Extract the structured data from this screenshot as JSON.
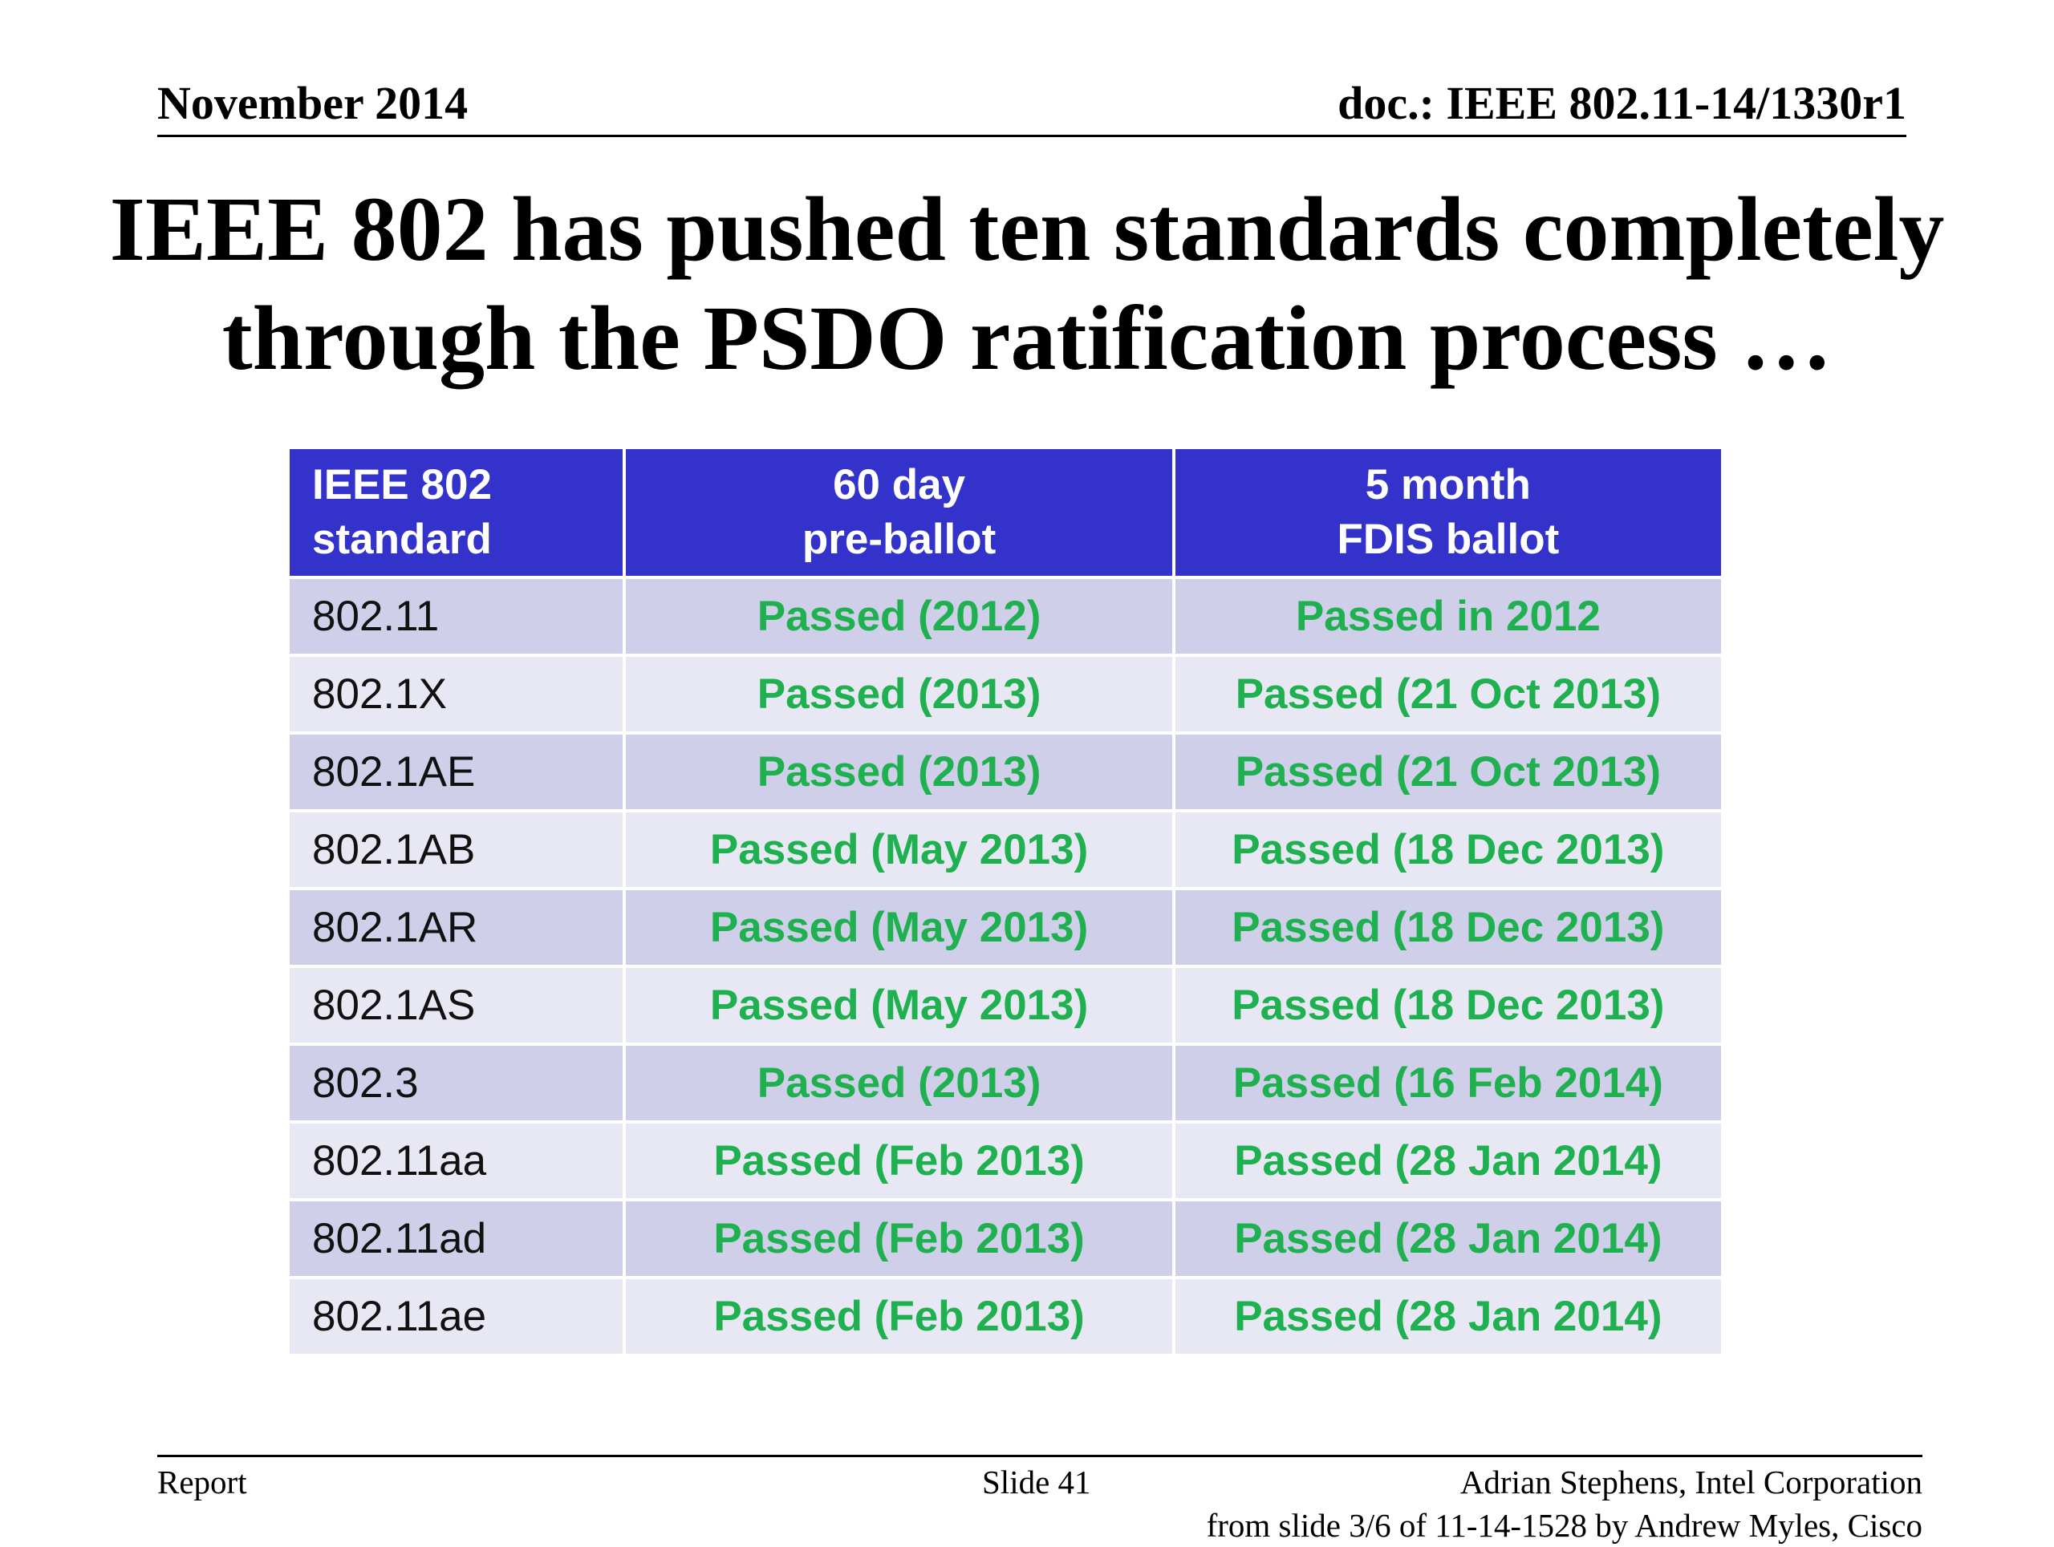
{
  "header": {
    "date": "November 2014",
    "doc_id": "doc.: IEEE 802.11-14/1330r1"
  },
  "title": {
    "line1": "IEEE 802 has pushed ten standards completely",
    "line2": "through the PSDO ratification process …"
  },
  "table": {
    "columns": [
      "IEEE 802 standard",
      "60 day pre-ballot",
      "5 month FDIS ballot"
    ],
    "header_lines": [
      [
        "IEEE 802",
        "standard"
      ],
      [
        "60 day",
        "pre-ballot"
      ],
      [
        "5 month",
        "FDIS ballot"
      ]
    ],
    "rows": [
      [
        "802.11",
        "Passed (2012)",
        "Passed in 2012"
      ],
      [
        "802.1X",
        "Passed (2013)",
        "Passed (21 Oct 2013)"
      ],
      [
        "802.1AE",
        "Passed (2013)",
        "Passed (21 Oct 2013)"
      ],
      [
        "802.1AB",
        "Passed (May 2013)",
        "Passed (18 Dec 2013)"
      ],
      [
        "802.1AR",
        "Passed (May 2013)",
        "Passed (18 Dec 2013)"
      ],
      [
        "802.1AS",
        "Passed (May 2013)",
        "Passed (18 Dec 2013)"
      ],
      [
        "802.3",
        "Passed (2013)",
        "Passed (16 Feb 2014)"
      ],
      [
        "802.11aa",
        "Passed (Feb 2013)",
        "Passed (28 Jan 2014)"
      ],
      [
        "802.11ad",
        "Passed (Feb 2013)",
        "Passed (28 Jan 2014)"
      ],
      [
        "802.11ae",
        "Passed (Feb 2013)",
        "Passed (28 Jan 2014)"
      ]
    ]
  },
  "footer": {
    "left": "Report",
    "center": "Slide 41",
    "right": "Adrian Stephens, Intel Corporation",
    "source": "from slide 3/6 of 11-14-1528 by Andrew Myles, Cisco"
  },
  "colors": {
    "header_bg": "#3333cc",
    "row_odd": "#cfcfea",
    "row_even": "#e8e8f5",
    "status_text": "#1fb04f"
  }
}
